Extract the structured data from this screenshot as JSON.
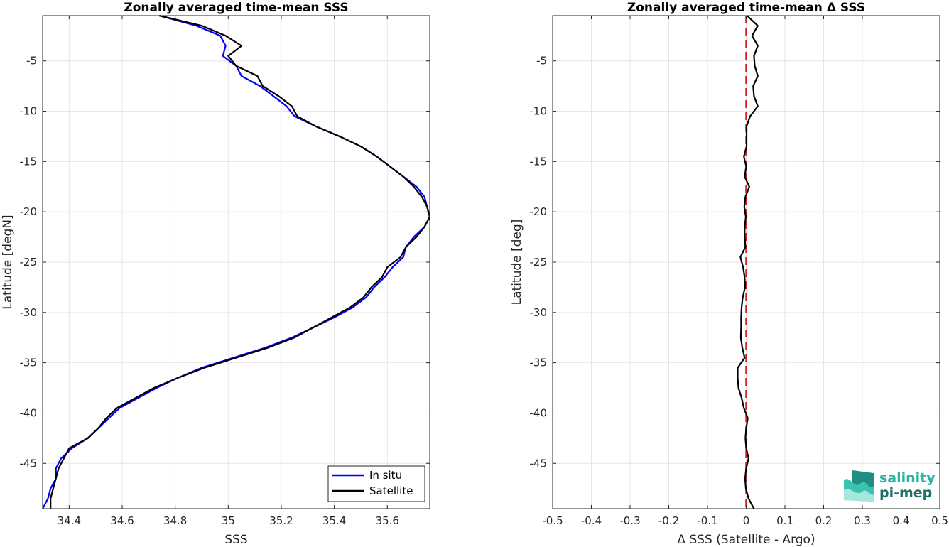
{
  "colors": {
    "in_situ": "#0000ff",
    "satellite": "#000000",
    "zero_line": "#d62020",
    "grid": "#e6e6e6",
    "axes": "#262626",
    "logo_light": "#2bb3a3",
    "logo_dark": "#1f6f66"
  },
  "logo": {
    "line1": "salinity",
    "line2": "pi-mep",
    "icon": "salinity-wave-logo-icon"
  },
  "chart_data": [
    {
      "type": "line",
      "title": "Zonally averaged time-mean SSS",
      "xlabel": "SSS",
      "ylabel": "Latitude [degN]",
      "xlim": [
        34.3,
        35.76
      ],
      "ylim": [
        -49.5,
        -0.5
      ],
      "xticks": [
        34.4,
        34.6,
        34.8,
        35,
        35.2,
        35.4,
        35.6
      ],
      "xtick_labels": [
        "34.4",
        "34.6",
        "34.8",
        "35",
        "35.2",
        "35.4",
        "35.6"
      ],
      "yticks": [
        -5,
        -10,
        -15,
        -20,
        -25,
        -30,
        -35,
        -40,
        -45
      ],
      "ytick_labels": [
        "-5",
        "-10",
        "-15",
        "-20",
        "-25",
        "-30",
        "-35",
        "-40",
        "-45"
      ],
      "grid": true,
      "legend": "bottom-right",
      "y": [
        -0.5,
        -1.5,
        -2.5,
        -3.5,
        -4.5,
        -5.5,
        -6.5,
        -7.5,
        -8.5,
        -9.5,
        -10.5,
        -11.5,
        -12.5,
        -13.5,
        -14.5,
        -15.5,
        -16.5,
        -17.5,
        -18.5,
        -19.5,
        -20.5,
        -21.5,
        -22.5,
        -23.5,
        -24.5,
        -25.5,
        -26.5,
        -27.5,
        -28.5,
        -29.5,
        -30.5,
        -31.5,
        -32.5,
        -33.5,
        -34.5,
        -35.5,
        -36.5,
        -37.5,
        -38.5,
        -39.5,
        -40.5,
        -41.5,
        -42.5,
        -43.5,
        -44.5,
        -45.5,
        -46.5,
        -47.5,
        -48.5,
        -49.5
      ],
      "series": [
        {
          "name": "In situ",
          "x": [
            34.74,
            34.88,
            34.97,
            34.99,
            34.98,
            35.03,
            35.05,
            35.12,
            35.17,
            35.22,
            35.25,
            35.33,
            35.42,
            35.5,
            35.56,
            35.61,
            35.66,
            35.71,
            35.74,
            35.75,
            35.76,
            35.74,
            35.7,
            35.67,
            35.66,
            35.62,
            35.59,
            35.55,
            35.52,
            35.47,
            35.4,
            35.32,
            35.24,
            35.14,
            35.02,
            34.9,
            34.81,
            34.73,
            34.66,
            34.59,
            34.55,
            34.51,
            34.47,
            34.41,
            34.37,
            34.35,
            34.35,
            34.33,
            34.32,
            34.3
          ]
        },
        {
          "name": "Satellite",
          "x": [
            34.74,
            34.9,
            34.99,
            35.05,
            35.0,
            35.03,
            35.11,
            35.13,
            35.19,
            35.24,
            35.26,
            35.33,
            35.42,
            35.5,
            35.56,
            35.61,
            35.66,
            35.7,
            35.73,
            35.75,
            35.76,
            35.74,
            35.71,
            35.67,
            35.65,
            35.6,
            35.58,
            35.54,
            35.51,
            35.46,
            35.39,
            35.32,
            35.25,
            35.15,
            35.03,
            34.91,
            34.81,
            34.72,
            34.65,
            34.58,
            34.54,
            34.51,
            34.47,
            34.4,
            34.38,
            34.36,
            34.35,
            34.34,
            34.33,
            34.33
          ]
        }
      ]
    },
    {
      "type": "line",
      "title": "Zonally averaged time-mean Δ SSS",
      "xlabel": "Δ SSS (Satellite - Argo)",
      "ylabel": "Latitude [deg]",
      "xlim": [
        -0.5,
        0.5
      ],
      "ylim": [
        -49.5,
        -0.5
      ],
      "xticks": [
        -0.5,
        -0.4,
        -0.3,
        -0.2,
        -0.1,
        0,
        0.1,
        0.2,
        0.3,
        0.4,
        0.5
      ],
      "xtick_labels": [
        "-0.5",
        "-0.4",
        "-0.3",
        "-0.2",
        "-0.1",
        "0",
        "0.1",
        "0.2",
        "0.3",
        "0.4",
        "0.5"
      ],
      "yticks": [
        -5,
        -10,
        -15,
        -20,
        -25,
        -30,
        -35,
        -40,
        -45
      ],
      "ytick_labels": [
        "-5",
        "-10",
        "-15",
        "-20",
        "-25",
        "-30",
        "-35",
        "-40",
        "-45"
      ],
      "grid": true,
      "reference_line": {
        "x": 0,
        "style": "dashed"
      },
      "y": [
        -0.5,
        -1.5,
        -2.5,
        -3.5,
        -4.5,
        -5.5,
        -6.5,
        -7.5,
        -8.5,
        -9.5,
        -10.5,
        -11.5,
        -12.5,
        -13.5,
        -14.5,
        -15.5,
        -16.5,
        -17.5,
        -18.5,
        -19.5,
        -20.5,
        -21.5,
        -22.5,
        -23.5,
        -24.5,
        -25.5,
        -26.5,
        -27.5,
        -28.5,
        -29.5,
        -30.5,
        -31.5,
        -32.5,
        -33.5,
        -34.5,
        -35.5,
        -36.5,
        -37.5,
        -38.5,
        -39.5,
        -40.5,
        -41.5,
        -42.5,
        -43.5,
        -44.5,
        -45.5,
        -46.5,
        -47.5,
        -48.5,
        -49.5
      ],
      "series": [
        {
          "name": "Satellite - Argo",
          "x": [
            0.002,
            0.03,
            0.015,
            0.03,
            0.02,
            0.022,
            0.03,
            0.018,
            0.02,
            0.03,
            0.01,
            0.001,
            0.001,
            0.001,
            -0.006,
            0.0,
            -0.004,
            0.008,
            -0.002,
            -0.005,
            -0.001,
            -0.004,
            -0.004,
            -0.002,
            -0.015,
            -0.008,
            -0.004,
            -0.003,
            -0.009,
            -0.012,
            -0.013,
            -0.013,
            -0.014,
            -0.01,
            -0.004,
            -0.022,
            -0.022,
            -0.02,
            -0.012,
            -0.006,
            0.004,
            0.0,
            -0.002,
            0.0,
            0.006,
            0.0,
            -0.003,
            -0.001,
            0.006,
            0.02
          ]
        }
      ]
    }
  ]
}
